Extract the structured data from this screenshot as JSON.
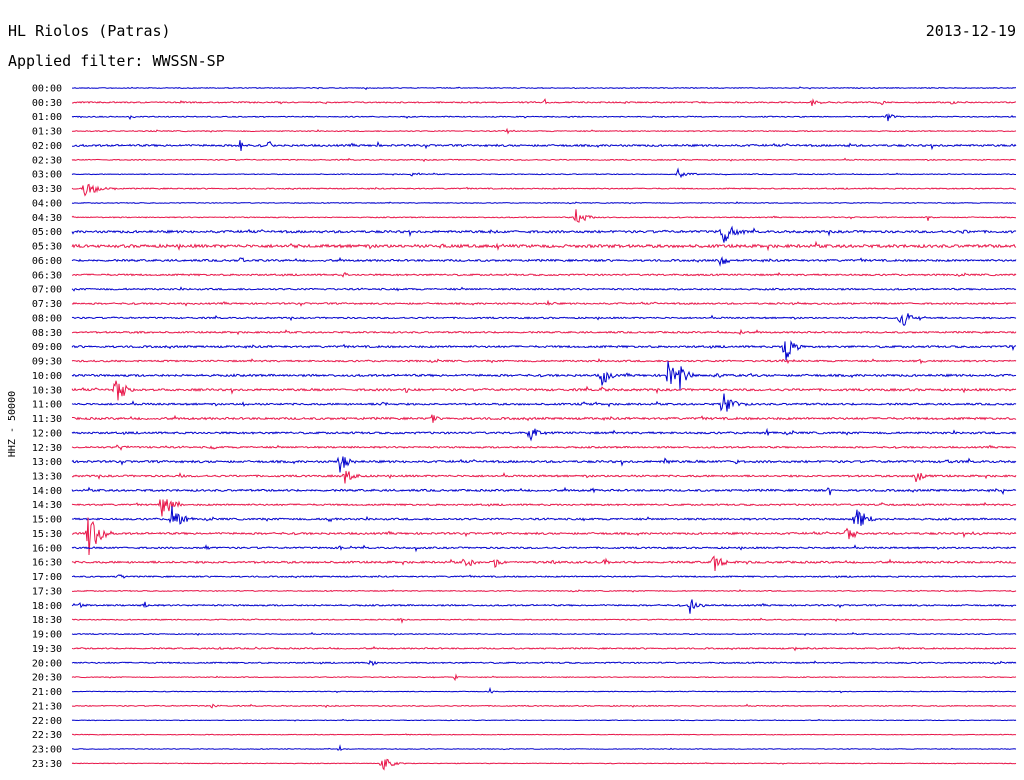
{
  "header": {
    "station": "HL Riolos (Patras)",
    "date": "2013-12-19",
    "filter": "Applied filter: WWSSN-SP"
  },
  "colors": {
    "blue_trace": "#0000cc",
    "red_trace": "#e8174a",
    "text": "#000000"
  },
  "chart_data": {
    "type": "line",
    "title": "HL Riolos (Patras)",
    "subtitle": "Applied filter: WWSSN-SP",
    "ylabel": "HHZ - 50000",
    "xlabel": "",
    "grid": false,
    "series": [
      {
        "name": "",
        "color": "#0000cc"
      },
      {
        "name": "",
        "color": "#e8174a"
      }
    ],
    "rows": [
      "00:00",
      "00:30",
      "01:00",
      "01:30",
      "02:00",
      "02:30",
      "03:00",
      "03:30",
      "04:00",
      "04:30",
      "05:00",
      "05:30",
      "06:00",
      "06:30",
      "07:00",
      "07:30",
      "08:00",
      "08:30",
      "09:00",
      "09:30",
      "10:00",
      "10:30",
      "11:00",
      "11:30",
      "12:00",
      "12:30",
      "13:00",
      "13:30",
      "14:00",
      "14:30",
      "15:00",
      "15:30",
      "16:00",
      "16:30",
      "17:00",
      "17:30",
      "18:00",
      "18:30",
      "19:00",
      "19:30",
      "20:00",
      "20:30",
      "21:00",
      "21:30",
      "22:00",
      "22:30",
      "23:00",
      "23:30"
    ],
    "noise": [
      0.5,
      0.8,
      0.6,
      0.6,
      1.2,
      0.6,
      0.5,
      0.7,
      0.5,
      0.6,
      1.4,
      1.8,
      1.2,
      1.0,
      1.0,
      1.0,
      0.9,
      1.0,
      1.2,
      1.0,
      1.3,
      1.3,
      1.1,
      1.3,
      1.2,
      1.0,
      1.3,
      1.1,
      1.2,
      1.0,
      1.1,
      1.2,
      1.0,
      1.2,
      0.8,
      0.6,
      0.9,
      0.6,
      0.6,
      0.8,
      0.8,
      0.5,
      0.4,
      0.6,
      0.4,
      0.4,
      0.4,
      0.4
    ],
    "events": [
      [],
      [
        [
          183,
          2,
          0.3
        ],
        [
          545,
          4,
          0.2
        ],
        [
          812,
          4,
          0.3
        ],
        [
          880,
          4,
          0.3
        ],
        [
          952,
          3,
          0.2
        ]
      ],
      [
        [
          130,
          2,
          0.2
        ],
        [
          887,
          6,
          0.3
        ]
      ],
      [
        [
          505,
          4,
          0.3
        ]
      ],
      [
        [
          240,
          10,
          0.15
        ],
        [
          270,
          8,
          0.1
        ],
        [
          378,
          3,
          0.1
        ],
        [
          850,
          4,
          0.1
        ]
      ],
      [],
      [
        [
          413,
          4,
          0.3
        ],
        [
          677,
          6,
          0.6
        ]
      ],
      [
        [
          84,
          9,
          0.8
        ]
      ],
      [],
      [
        [
          576,
          9,
          0.5
        ],
        [
          928,
          3,
          0.2
        ]
      ],
      [
        [
          722,
          15,
          0.6
        ],
        [
          962,
          3,
          0.3
        ],
        [
          490,
          4,
          0.2
        ]
      ],
      [
        [
          90,
          3,
          0.2
        ],
        [
          290,
          3,
          0.3
        ],
        [
          440,
          3,
          0.2
        ],
        [
          495,
          4,
          0.3
        ]
      ],
      [
        [
          240,
          3,
          0.3
        ],
        [
          720,
          6,
          0.5
        ]
      ],
      [
        [
          345,
          3,
          0.2
        ]
      ],
      [],
      [
        [
          185,
          3,
          0.2
        ],
        [
          548,
          3,
          0.3
        ],
        [
          795,
          3,
          0.2
        ]
      ],
      [
        [
          900,
          11,
          0.7
        ]
      ],
      [
        [
          140,
          3,
          0.3
        ],
        [
          740,
          3,
          0.2
        ]
      ],
      [
        [
          785,
          19,
          0.5
        ],
        [
          1012,
          3,
          0.2
        ]
      ],
      [
        [
          783,
          4,
          0.3
        ],
        [
          920,
          3,
          0.2
        ]
      ],
      [
        [
          602,
          14,
          0.35
        ],
        [
          668,
          17,
          0.4
        ],
        [
          680,
          15,
          0.35
        ],
        [
          715,
          3,
          0.3
        ]
      ],
      [
        [
          115,
          17,
          0.6
        ],
        [
          405,
          4,
          0.3
        ],
        [
          602,
          3,
          0.2
        ]
      ],
      [
        [
          723,
          16,
          0.6
        ],
        [
          382,
          3,
          0.3
        ],
        [
          243,
          3,
          0.2
        ],
        [
          583,
          3,
          0.2
        ]
      ],
      [
        [
          432,
          6,
          0.2
        ]
      ],
      [
        [
          530,
          8,
          0.5
        ],
        [
          767,
          3,
          0.3
        ]
      ],
      [
        [
          119,
          4,
          0.3
        ],
        [
          212,
          3,
          0.2
        ]
      ],
      [
        [
          340,
          12,
          0.4
        ],
        [
          665,
          4,
          0.2
        ],
        [
          735,
          4,
          0.2
        ],
        [
          948,
          3,
          0.2
        ]
      ],
      [
        [
          345,
          9,
          0.5
        ],
        [
          915,
          8,
          0.5
        ],
        [
          180,
          3,
          0.2
        ]
      ],
      [
        [
          593,
          3,
          0.2
        ],
        [
          830,
          4,
          0.2
        ],
        [
          1003,
          3,
          0.2
        ]
      ],
      [
        [
          162,
          12,
          0.7
        ],
        [
          880,
          3,
          0.2
        ]
      ],
      [
        [
          172,
          14,
          0.6
        ],
        [
          855,
          19,
          0.6
        ],
        [
          328,
          3,
          0.3
        ]
      ],
      [
        [
          88,
          28,
          0.6
        ],
        [
          847,
          9,
          0.5
        ],
        [
          975,
          3,
          0.2
        ]
      ],
      [
        [
          206,
          3,
          0.2
        ],
        [
          340,
          3,
          0.3
        ],
        [
          415,
          4,
          0.2
        ]
      ],
      [
        [
          465,
          8,
          0.4
        ],
        [
          495,
          6,
          0.3
        ],
        [
          552,
          3,
          0.2
        ],
        [
          605,
          4,
          0.2
        ],
        [
          713,
          11,
          0.5
        ]
      ],
      [
        [
          120,
          4,
          0.3
        ]
      ],
      [
        [
          1015,
          3,
          0.3
        ]
      ],
      [
        [
          80,
          4,
          0.3
        ],
        [
          145,
          4,
          0.2
        ],
        [
          690,
          9,
          0.5
        ]
      ],
      [
        [
          400,
          3,
          0.2
        ]
      ],
      [],
      [
        [
          795,
          3,
          0.3
        ],
        [
          258,
          3,
          0.2
        ],
        [
          220,
          3,
          0.2
        ]
      ],
      [
        [
          370,
          4,
          0.3
        ]
      ],
      [
        [
          455,
          3,
          0.2
        ]
      ],
      [
        [
          490,
          3,
          0.2
        ]
      ],
      [
        [
          212,
          4,
          0.3
        ]
      ],
      [],
      [],
      [
        [
          340,
          3,
          0.2
        ]
      ],
      [
        [
          382,
          8,
          0.6
        ]
      ]
    ]
  }
}
